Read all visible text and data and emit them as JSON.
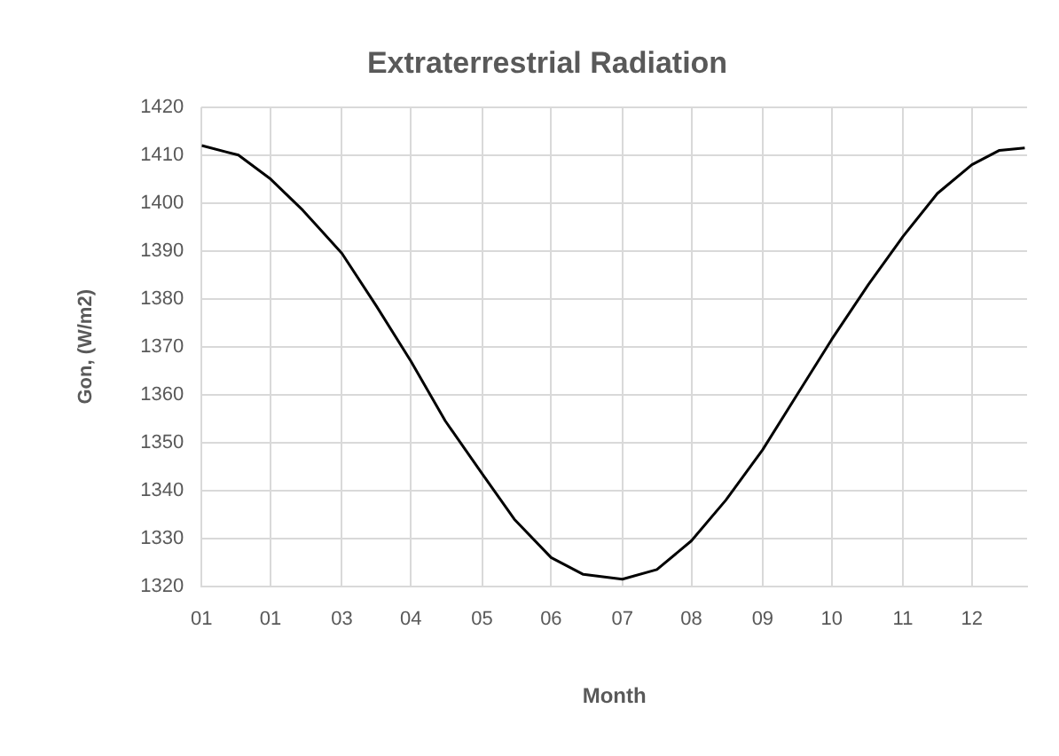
{
  "chart_data": {
    "type": "line",
    "title": "Extraterrestrial Radiation",
    "xlabel": "Month",
    "ylabel": "Gon, (W/m2)",
    "x": [
      "--01-01",
      "--01-17",
      "--01-31",
      "--02-14",
      "--03-03",
      "--03-18",
      "--04-02",
      "--04-17",
      "--05-03",
      "--05-17",
      "--06-02",
      "--06-16",
      "--07-03",
      "--07-18",
      "--08-02",
      "--08-17",
      "--09-02",
      "--09-17",
      "--10-02",
      "--10-18",
      "--11-02",
      "--11-17",
      "--12-02",
      "--12-14",
      "--12-25"
    ],
    "series": [
      {
        "color": "#000000",
        "values": [
          1412,
          1410,
          1405,
          1398.5,
          1389.5,
          1378.5,
          1367,
          1354.5,
          1343.5,
          1334,
          1326,
          1322.5,
          1321.5,
          1323.5,
          1329.5,
          1338,
          1348.5,
          1360,
          1371.5,
          1383,
          1393,
          1402,
          1408,
          1411,
          1411.5
        ]
      }
    ],
    "xlim": [
      "--01-01",
      "--12-26"
    ],
    "xticks": [
      {
        "value": "--01-01",
        "label": "01"
      },
      {
        "value": "--01-31",
        "label": "01"
      },
      {
        "value": "--03-03",
        "label": "03"
      },
      {
        "value": "--04-02",
        "label": "04"
      },
      {
        "value": "--05-03",
        "label": "05"
      },
      {
        "value": "--06-02",
        "label": "06"
      },
      {
        "value": "--07-03",
        "label": "07"
      },
      {
        "value": "--08-02",
        "label": "08"
      },
      {
        "value": "--09-02",
        "label": "09"
      },
      {
        "value": "--10-02",
        "label": "10"
      },
      {
        "value": "--11-02",
        "label": "11"
      },
      {
        "value": "--12-02",
        "label": "12"
      }
    ],
    "ylim": [
      1320,
      1420
    ],
    "yticks": [
      1320,
      1330,
      1340,
      1350,
      1360,
      1370,
      1380,
      1390,
      1400,
      1410,
      1420
    ],
    "grid": true,
    "legend": false,
    "marker": "none",
    "line_style": "solid"
  }
}
